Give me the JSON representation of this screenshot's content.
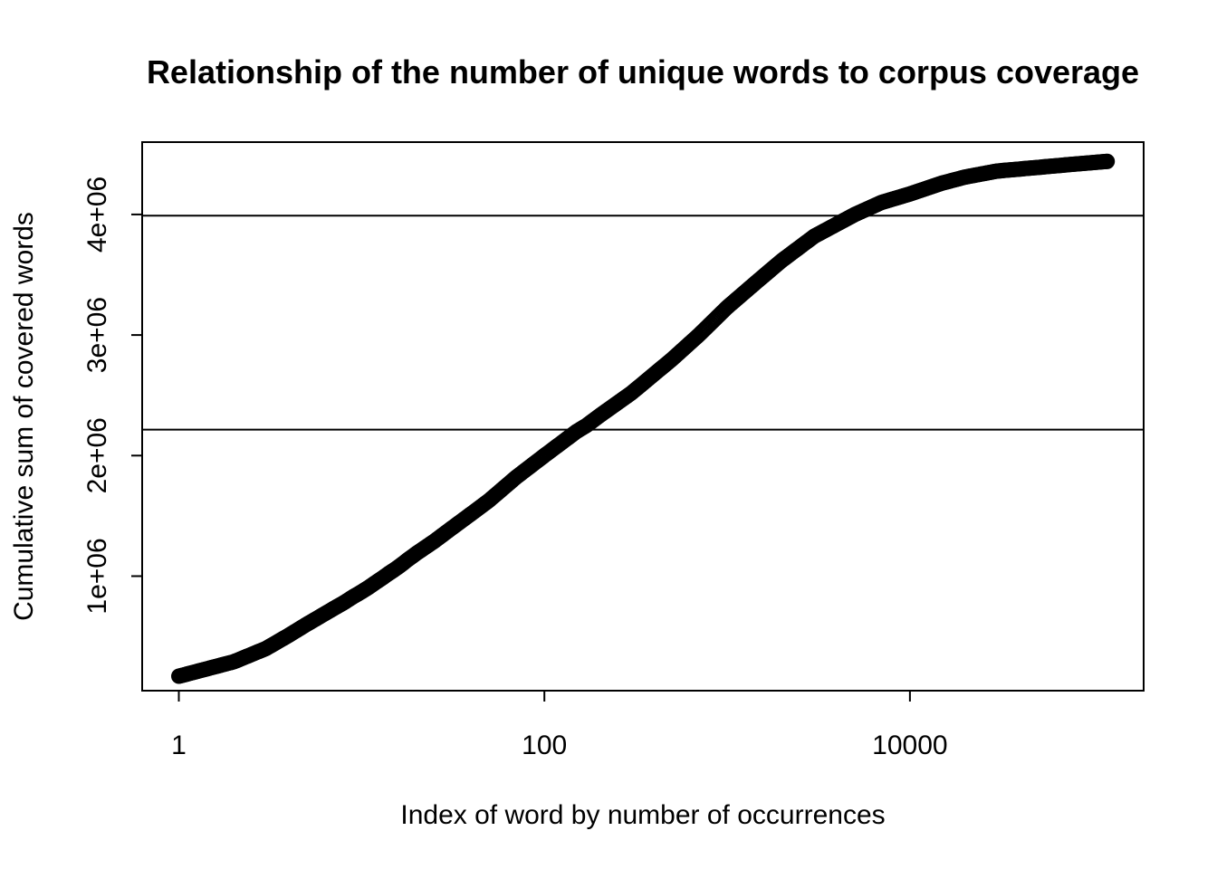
{
  "chart_data": {
    "type": "scatter",
    "title": "Relationship of the number of unique words to corpus coverage",
    "xlabel": "Index of word by number of occurrences",
    "ylabel": "Cumulative sum of covered words",
    "x_scale": "log",
    "xlim": [
      0.63,
      190000
    ],
    "ylim": [
      50000,
      4600000
    ],
    "x_ticks": [
      1,
      100,
      10000
    ],
    "x_tick_labels": [
      "1",
      "100",
      "10000"
    ],
    "y_ticks": [
      1000000,
      2000000,
      3000000,
      4000000
    ],
    "y_tick_labels": [
      "1e+06",
      "2e+06",
      "3e+06",
      "4e+06"
    ],
    "reference_lines_y": [
      3990000,
      2215000
    ],
    "grid": false,
    "legend": "none",
    "series": [
      {
        "x": [
          1,
          2,
          3,
          4,
          5,
          6,
          7,
          8,
          9,
          10,
          11,
          12,
          13,
          14,
          15,
          16,
          17,
          18,
          19,
          20,
          25,
          30,
          40,
          50,
          70,
          100,
          150,
          170,
          200,
          300,
          500,
          700,
          1000,
          1500,
          2000,
          3000,
          5000,
          7000,
          10000,
          15000,
          20000,
          30000,
          50000,
          70000,
          100000,
          120000
        ],
        "y": [
          170000,
          290000,
          400000,
          510000,
          600000,
          670000,
          730000,
          780000,
          830000,
          870000,
          910000,
          950000,
          985000,
          1020000,
          1050000,
          1080000,
          1110000,
          1140000,
          1165000,
          1190000,
          1290000,
          1380000,
          1520000,
          1630000,
          1820000,
          2000000,
          2200000,
          2250000,
          2330000,
          2520000,
          2800000,
          3000000,
          3230000,
          3460000,
          3620000,
          3820000,
          4000000,
          4100000,
          4170000,
          4260000,
          4310000,
          4360000,
          4390000,
          4410000,
          4430000,
          4440000
        ]
      }
    ]
  }
}
